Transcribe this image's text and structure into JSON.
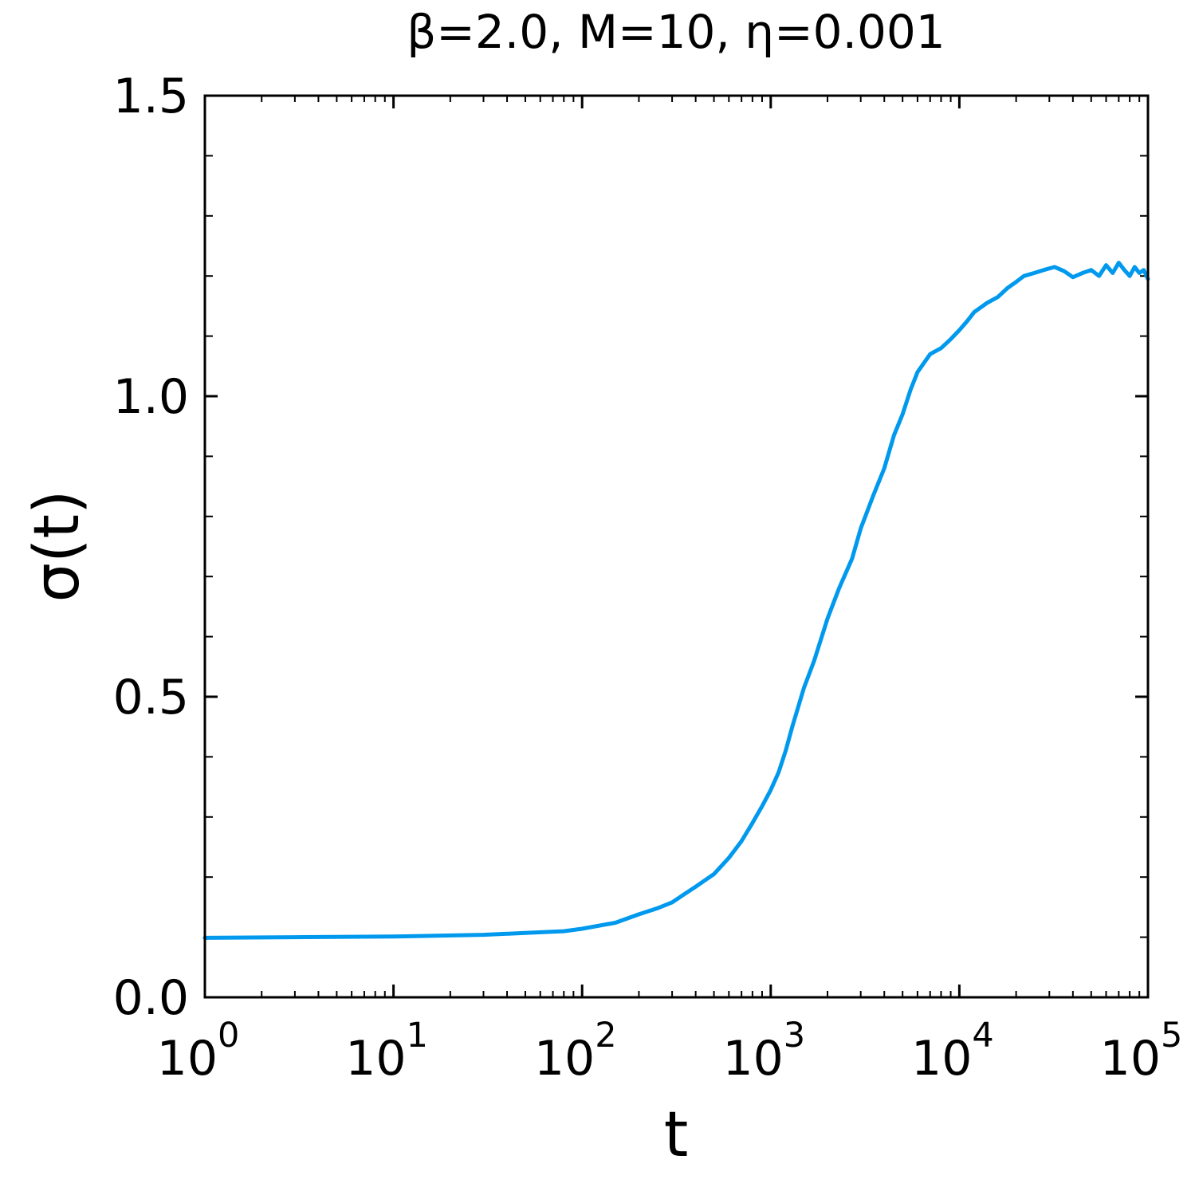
{
  "chart_data": {
    "type": "line",
    "title": "β=2.0, M=10, η=0.001",
    "xlabel": "t",
    "ylabel": "σ(t)",
    "xscale": "log",
    "xlim": [
      1,
      100000
    ],
    "ylim": [
      0.0,
      1.5
    ],
    "grid": false,
    "legend": "none",
    "ticks_direction": "in",
    "mirror_ticks": true,
    "x_ticks": [
      {
        "value": 1,
        "base": "10",
        "exp": "0"
      },
      {
        "value": 10,
        "base": "10",
        "exp": "1"
      },
      {
        "value": 100,
        "base": "10",
        "exp": "2"
      },
      {
        "value": 1000,
        "base": "10",
        "exp": "3"
      },
      {
        "value": 10000,
        "base": "10",
        "exp": "4"
      },
      {
        "value": 100000,
        "base": "10",
        "exp": "5"
      }
    ],
    "y_ticks": [
      {
        "value": 0.0,
        "label": "0.0"
      },
      {
        "value": 0.5,
        "label": "0.5"
      },
      {
        "value": 1.0,
        "label": "1.0"
      },
      {
        "value": 1.5,
        "label": "1.5"
      }
    ],
    "y_minor_step": 0.1,
    "series": [
      {
        "color": "#0099ee",
        "x": [
          1,
          3,
          10,
          30,
          50,
          80,
          100,
          150,
          200,
          250,
          300,
          350,
          400,
          500,
          600,
          700,
          800,
          900,
          1000,
          1100,
          1200,
          1300,
          1500,
          1700,
          2000,
          2300,
          2700,
          3000,
          3500,
          4000,
          4500,
          5000,
          5500,
          6000,
          7000,
          8000,
          9000,
          10000,
          11000,
          12000,
          14000,
          16000,
          18000,
          20000,
          22000,
          25000,
          28000,
          32000,
          36000,
          40000,
          45000,
          50000,
          55000,
          60000,
          65000,
          70000,
          75000,
          80000,
          85000,
          90000,
          95000,
          100000
        ],
        "y": [
          0.099,
          0.1,
          0.101,
          0.104,
          0.107,
          0.11,
          0.114,
          0.124,
          0.138,
          0.148,
          0.158,
          0.172,
          0.184,
          0.205,
          0.232,
          0.26,
          0.29,
          0.318,
          0.345,
          0.374,
          0.41,
          0.45,
          0.515,
          0.56,
          0.63,
          0.68,
          0.73,
          0.78,
          0.835,
          0.88,
          0.935,
          0.97,
          1.01,
          1.04,
          1.07,
          1.08,
          1.095,
          1.11,
          1.125,
          1.14,
          1.155,
          1.165,
          1.18,
          1.19,
          1.2,
          1.205,
          1.21,
          1.215,
          1.208,
          1.198,
          1.205,
          1.21,
          1.2,
          1.218,
          1.205,
          1.222,
          1.21,
          1.2,
          1.215,
          1.205,
          1.21,
          1.195
        ]
      }
    ]
  }
}
